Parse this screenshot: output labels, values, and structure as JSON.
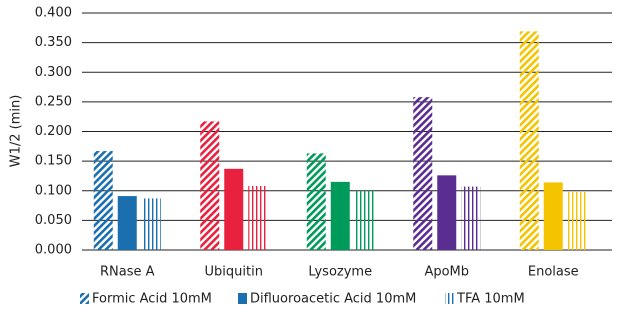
{
  "chart_data": {
    "type": "bar",
    "y_axis_label": "W1/2 (min)",
    "categories": [
      "RNase A",
      "Ubiquitin",
      "Lysozyme",
      "ApoMb",
      "Enolase"
    ],
    "category_colors": [
      "#1b6fae",
      "#e8213f",
      "#009a5a",
      "#5a2d91",
      "#f5c400"
    ],
    "series": [
      {
        "name": "Formic Acid 10mM",
        "pattern": "diagonal",
        "values": [
          0.167,
          0.217,
          0.163,
          0.258,
          0.369
        ]
      },
      {
        "name": "Difluoroacetic Acid 10mM",
        "pattern": "solid",
        "values": [
          0.091,
          0.137,
          0.115,
          0.126,
          0.114
        ]
      },
      {
        "name": "TFA 10mM",
        "pattern": "vertical",
        "values": [
          0.087,
          0.108,
          0.1,
          0.107,
          0.098
        ]
      }
    ],
    "ylim": [
      0,
      0.4
    ],
    "yticks": [
      {
        "value": 0,
        "label": "0.000"
      },
      {
        "value": 0.05,
        "label": "0.050"
      },
      {
        "value": 0.1,
        "label": "0.100"
      },
      {
        "value": 0.15,
        "label": "0.150"
      },
      {
        "value": 0.2,
        "label": "0.200"
      },
      {
        "value": 0.25,
        "label": "0.250"
      },
      {
        "value": 0.3,
        "label": "0.300"
      },
      {
        "value": 0.35,
        "label": "0.350"
      },
      {
        "value": 0.4,
        "label": "0.400"
      }
    ],
    "grid": true
  }
}
